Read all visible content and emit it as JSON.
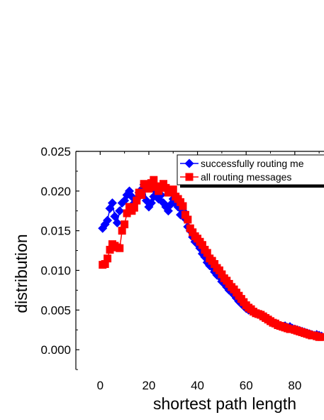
{
  "chart_data": {
    "type": "scatter",
    "xlabel": "shortest path length",
    "ylabel": "distribution",
    "xlim": [
      -10,
      92
    ],
    "ylim": [
      -0.0025,
      0.025
    ],
    "xticks": [
      0,
      20,
      40,
      60,
      80
    ],
    "xtick_labels": [
      "0",
      "20",
      "40",
      "60",
      "80"
    ],
    "yticks": [
      0.0,
      0.005,
      0.01,
      0.015,
      0.02,
      0.025
    ],
    "ytick_labels": [
      "0.000",
      "0.005",
      "0.010",
      "0.015",
      "0.020",
      "0.025"
    ],
    "legend_position": "top-right",
    "series": [
      {
        "name": "successfully routing me",
        "color": "#0000ff",
        "marker": "diamond",
        "points": [
          [
            1,
            0.0153
          ],
          [
            2,
            0.0158
          ],
          [
            3,
            0.0163
          ],
          [
            4,
            0.0178
          ],
          [
            5,
            0.0185
          ],
          [
            6,
            0.0168
          ],
          [
            7,
            0.016
          ],
          [
            8,
            0.0175
          ],
          [
            9,
            0.0185
          ],
          [
            10,
            0.0188
          ],
          [
            11,
            0.0195
          ],
          [
            12,
            0.02
          ],
          [
            13,
            0.0193
          ],
          [
            14,
            0.0185
          ],
          [
            15,
            0.019
          ],
          [
            16,
            0.0198
          ],
          [
            17,
            0.0202
          ],
          [
            18,
            0.0208
          ],
          [
            19,
            0.0188
          ],
          [
            20,
            0.018
          ],
          [
            21,
            0.0185
          ],
          [
            22,
            0.0193
          ],
          [
            23,
            0.02
          ],
          [
            24,
            0.019
          ],
          [
            25,
            0.0195
          ],
          [
            26,
            0.0185
          ],
          [
            27,
            0.018
          ],
          [
            28,
            0.0175
          ],
          [
            29,
            0.0183
          ],
          [
            30,
            0.019
          ],
          [
            31,
            0.0185
          ],
          [
            32,
            0.018
          ],
          [
            33,
            0.017
          ],
          [
            34,
            0.0175
          ],
          [
            35,
            0.0165
          ],
          [
            36,
            0.0155
          ],
          [
            37,
            0.015
          ],
          [
            38,
            0.0142
          ],
          [
            39,
            0.0136
          ],
          [
            40,
            0.0133
          ],
          [
            41,
            0.0128
          ],
          [
            42,
            0.0121
          ],
          [
            43,
            0.0117
          ],
          [
            44,
            0.011
          ],
          [
            45,
            0.0106
          ],
          [
            46,
            0.0104
          ],
          [
            47,
            0.0098
          ],
          [
            48,
            0.0094
          ],
          [
            49,
            0.0092
          ],
          [
            50,
            0.0086
          ],
          [
            51,
            0.0083
          ],
          [
            52,
            0.0079
          ],
          [
            53,
            0.0075
          ],
          [
            54,
            0.0073
          ],
          [
            55,
            0.0069
          ],
          [
            56,
            0.0065
          ],
          [
            57,
            0.0061
          ],
          [
            58,
            0.0058
          ],
          [
            59,
            0.0055
          ],
          [
            60,
            0.0052
          ],
          [
            61,
            0.005
          ],
          [
            62,
            0.0049
          ],
          [
            63,
            0.0047
          ],
          [
            64,
            0.0046
          ],
          [
            65,
            0.0045
          ],
          [
            66,
            0.0043
          ],
          [
            67,
            0.0041
          ],
          [
            68,
            0.004
          ],
          [
            69,
            0.0038
          ],
          [
            70,
            0.0036
          ],
          [
            71,
            0.0034
          ],
          [
            72,
            0.0033
          ],
          [
            73,
            0.0031
          ],
          [
            74,
            0.003
          ],
          [
            75,
            0.0029
          ],
          [
            76,
            0.003
          ],
          [
            77,
            0.0028
          ],
          [
            78,
            0.0029
          ],
          [
            79,
            0.0027
          ],
          [
            80,
            0.0026
          ],
          [
            81,
            0.0025
          ],
          [
            82,
            0.0024
          ],
          [
            83,
            0.0023
          ],
          [
            84,
            0.0022
          ],
          [
            85,
            0.0021
          ],
          [
            86,
            0.002
          ],
          [
            87,
            0.0019
          ],
          [
            88,
            0.0018
          ],
          [
            89,
            0.0019
          ],
          [
            90,
            0.0018
          ],
          [
            91,
            0.0017
          ]
        ]
      },
      {
        "name": "all routing messages",
        "color": "#ff0000",
        "marker": "square",
        "points": [
          [
            1,
            0.0107
          ],
          [
            2,
            0.0108
          ],
          [
            3,
            0.0115
          ],
          [
            4,
            0.0126
          ],
          [
            5,
            0.0133
          ],
          [
            6,
            0.0131
          ],
          [
            7,
            0.0129
          ],
          [
            8,
            0.0128
          ],
          [
            9,
            0.015
          ],
          [
            10,
            0.0158
          ],
          [
            11,
            0.0172
          ],
          [
            12,
            0.018
          ],
          [
            13,
            0.0175
          ],
          [
            14,
            0.0179
          ],
          [
            15,
            0.0188
          ],
          [
            16,
            0.0198
          ],
          [
            17,
            0.0195
          ],
          [
            18,
            0.0209
          ],
          [
            19,
            0.0205
          ],
          [
            20,
            0.0203
          ],
          [
            21,
            0.021
          ],
          [
            22,
            0.0214
          ],
          [
            23,
            0.0205
          ],
          [
            24,
            0.02
          ],
          [
            25,
            0.0206
          ],
          [
            26,
            0.0209
          ],
          [
            27,
            0.0204
          ],
          [
            28,
            0.0198
          ],
          [
            29,
            0.0199
          ],
          [
            30,
            0.0202
          ],
          [
            31,
            0.0193
          ],
          [
            32,
            0.019
          ],
          [
            33,
            0.0186
          ],
          [
            34,
            0.0181
          ],
          [
            35,
            0.017
          ],
          [
            36,
            0.0164
          ],
          [
            37,
            0.0153
          ],
          [
            38,
            0.0148
          ],
          [
            39,
            0.0143
          ],
          [
            40,
            0.014
          ],
          [
            41,
            0.0136
          ],
          [
            42,
            0.0132
          ],
          [
            43,
            0.0126
          ],
          [
            44,
            0.0122
          ],
          [
            45,
            0.0115
          ],
          [
            46,
            0.0112
          ],
          [
            47,
            0.0108
          ],
          [
            48,
            0.0103
          ],
          [
            49,
            0.01
          ],
          [
            50,
            0.0095
          ],
          [
            51,
            0.009
          ],
          [
            52,
            0.0087
          ],
          [
            53,
            0.0083
          ],
          [
            54,
            0.0079
          ],
          [
            55,
            0.0076
          ],
          [
            56,
            0.0072
          ],
          [
            57,
            0.0068
          ],
          [
            58,
            0.0064
          ],
          [
            59,
            0.006
          ],
          [
            60,
            0.0056
          ],
          [
            61,
            0.0053
          ],
          [
            62,
            0.0051
          ],
          [
            63,
            0.0048
          ],
          [
            64,
            0.0046
          ],
          [
            65,
            0.0045
          ],
          [
            66,
            0.0044
          ],
          [
            67,
            0.0042
          ],
          [
            68,
            0.004
          ],
          [
            69,
            0.0038
          ],
          [
            70,
            0.0036
          ],
          [
            71,
            0.0034
          ],
          [
            72,
            0.0033
          ],
          [
            73,
            0.0031
          ],
          [
            74,
            0.003
          ],
          [
            75,
            0.0029
          ],
          [
            76,
            0.0028
          ],
          [
            77,
            0.0027
          ],
          [
            78,
            0.0026
          ],
          [
            79,
            0.0026
          ],
          [
            80,
            0.0025
          ],
          [
            81,
            0.0024
          ],
          [
            82,
            0.0023
          ],
          [
            83,
            0.0022
          ],
          [
            84,
            0.0021
          ],
          [
            85,
            0.002
          ],
          [
            86,
            0.0019
          ],
          [
            87,
            0.0018
          ],
          [
            88,
            0.0018
          ],
          [
            89,
            0.0017
          ],
          [
            90,
            0.0016
          ],
          [
            91,
            0.0016
          ]
        ]
      }
    ]
  }
}
